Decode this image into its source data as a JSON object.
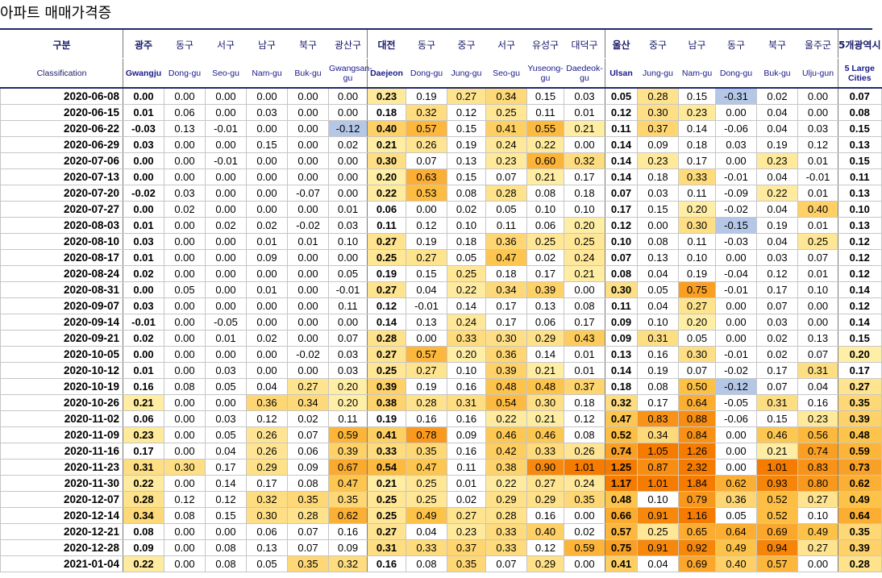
{
  "title": "아파트 매매가격증",
  "header": {
    "label_ko": "구분",
    "label_en": "Classification",
    "columns": [
      {
        "ko": "광주",
        "en": "Gwangju"
      },
      {
        "ko": "동구",
        "en": "Dong-gu"
      },
      {
        "ko": "서구",
        "en": "Seo-gu"
      },
      {
        "ko": "남구",
        "en": "Nam-gu"
      },
      {
        "ko": "북구",
        "en": "Buk-gu"
      },
      {
        "ko": "광산구",
        "en": "Gwangsan-gu"
      },
      {
        "ko": "대전",
        "en": "Daejeon"
      },
      {
        "ko": "동구",
        "en": "Dong-gu"
      },
      {
        "ko": "중구",
        "en": "Jung-gu"
      },
      {
        "ko": "서구",
        "en": "Seo-gu"
      },
      {
        "ko": "유성구",
        "en": "Yuseong-gu"
      },
      {
        "ko": "대덕구",
        "en": "Daedeok-gu"
      },
      {
        "ko": "울산",
        "en": "Ulsan"
      },
      {
        "ko": "중구",
        "en": "Jung-gu"
      },
      {
        "ko": "남구",
        "en": "Nam-gu"
      },
      {
        "ko": "동구",
        "en": "Dong-gu"
      },
      {
        "ko": "북구",
        "en": "Buk-gu"
      },
      {
        "ko": "울주군",
        "en": "Ulju-gun"
      },
      {
        "ko": "5개광역시",
        "en": "5 Large Cities"
      }
    ]
  },
  "rows": [
    {
      "date": "2020-06-08",
      "values": [
        "0.00",
        "0.00",
        "0.00",
        "0.00",
        "0.00",
        "0.00",
        "0.23",
        "0.19",
        "0.27",
        "0.34",
        "0.15",
        "0.03",
        "0.05",
        "0.28",
        "0.15",
        "-0.31",
        "0.02",
        "0.00",
        "0.07"
      ]
    },
    {
      "date": "2020-06-15",
      "values": [
        "0.01",
        "0.06",
        "0.00",
        "0.03",
        "0.00",
        "0.00",
        "0.18",
        "0.32",
        "0.12",
        "0.25",
        "0.11",
        "0.01",
        "0.12",
        "0.30",
        "0.23",
        "0.00",
        "0.04",
        "0.00",
        "0.08"
      ]
    },
    {
      "date": "2020-06-22",
      "values": [
        "-0.03",
        "0.13",
        "-0.01",
        "0.00",
        "0.00",
        "-0.12",
        "0.40",
        "0.57",
        "0.15",
        "0.41",
        "0.55",
        "0.21",
        "0.11",
        "0.37",
        "0.14",
        "-0.06",
        "0.04",
        "0.03",
        "0.15"
      ]
    },
    {
      "date": "2020-06-29",
      "values": [
        "0.03",
        "0.00",
        "0.00",
        "0.15",
        "0.00",
        "0.02",
        "0.21",
        "0.26",
        "0.19",
        "0.24",
        "0.22",
        "0.00",
        "0.14",
        "0.09",
        "0.18",
        "0.03",
        "0.19",
        "0.12",
        "0.13"
      ]
    },
    {
      "date": "2020-07-06",
      "values": [
        "0.00",
        "0.00",
        "-0.01",
        "0.00",
        "0.00",
        "0.00",
        "0.30",
        "0.07",
        "0.13",
        "0.23",
        "0.60",
        "0.32",
        "0.14",
        "0.23",
        "0.17",
        "0.00",
        "0.23",
        "0.01",
        "0.15"
      ]
    },
    {
      "date": "2020-07-13",
      "values": [
        "0.00",
        "0.00",
        "0.00",
        "0.00",
        "0.00",
        "0.00",
        "0.20",
        "0.63",
        "0.15",
        "0.07",
        "0.21",
        "0.17",
        "0.14",
        "0.18",
        "0.33",
        "-0.01",
        "0.04",
        "-0.01",
        "0.11"
      ]
    },
    {
      "date": "2020-07-20",
      "values": [
        "-0.02",
        "0.03",
        "0.00",
        "0.00",
        "-0.07",
        "0.00",
        "0.22",
        "0.53",
        "0.08",
        "0.28",
        "0.08",
        "0.18",
        "0.07",
        "0.03",
        "0.11",
        "-0.09",
        "0.22",
        "0.01",
        "0.13"
      ]
    },
    {
      "date": "2020-07-27",
      "values": [
        "0.00",
        "0.02",
        "0.00",
        "0.00",
        "0.00",
        "0.01",
        "0.06",
        "0.00",
        "0.02",
        "0.05",
        "0.10",
        "0.10",
        "0.17",
        "0.15",
        "0.20",
        "-0.02",
        "0.04",
        "0.40",
        "0.10"
      ]
    },
    {
      "date": "2020-08-03",
      "values": [
        "0.01",
        "0.00",
        "0.02",
        "0.02",
        "-0.02",
        "0.03",
        "0.11",
        "0.12",
        "0.10",
        "0.11",
        "0.06",
        "0.20",
        "0.12",
        "0.00",
        "0.30",
        "-0.15",
        "0.19",
        "0.01",
        "0.13"
      ]
    },
    {
      "date": "2020-08-10",
      "values": [
        "0.03",
        "0.00",
        "0.00",
        "0.01",
        "0.01",
        "0.10",
        "0.27",
        "0.19",
        "0.18",
        "0.36",
        "0.25",
        "0.25",
        "0.10",
        "0.08",
        "0.11",
        "-0.03",
        "0.04",
        "0.25",
        "0.12"
      ]
    },
    {
      "date": "2020-08-17",
      "values": [
        "0.01",
        "0.00",
        "0.00",
        "0.09",
        "0.00",
        "0.00",
        "0.25",
        "0.27",
        "0.05",
        "0.47",
        "0.02",
        "0.24",
        "0.07",
        "0.13",
        "0.10",
        "0.00",
        "0.03",
        "0.07",
        "0.12"
      ]
    },
    {
      "date": "2020-08-24",
      "values": [
        "0.02",
        "0.00",
        "0.00",
        "0.00",
        "0.00",
        "0.05",
        "0.19",
        "0.15",
        "0.25",
        "0.18",
        "0.17",
        "0.21",
        "0.08",
        "0.04",
        "0.19",
        "-0.04",
        "0.12",
        "0.01",
        "0.12"
      ]
    },
    {
      "date": "2020-08-31",
      "values": [
        "0.00",
        "0.05",
        "0.00",
        "0.01",
        "0.00",
        "-0.01",
        "0.27",
        "0.04",
        "0.22",
        "0.34",
        "0.39",
        "0.00",
        "0.30",
        "0.05",
        "0.75",
        "-0.01",
        "0.17",
        "0.10",
        "0.14"
      ]
    },
    {
      "date": "2020-09-07",
      "values": [
        "0.03",
        "0.00",
        "0.00",
        "0.00",
        "0.00",
        "0.11",
        "0.12",
        "-0.01",
        "0.14",
        "0.17",
        "0.13",
        "0.08",
        "0.11",
        "0.04",
        "0.27",
        "0.00",
        "0.07",
        "0.00",
        "0.12"
      ]
    },
    {
      "date": "2020-09-14",
      "values": [
        "-0.01",
        "0.00",
        "-0.05",
        "0.00",
        "0.00",
        "0.00",
        "0.14",
        "0.13",
        "0.24",
        "0.17",
        "0.06",
        "0.17",
        "0.09",
        "0.10",
        "0.20",
        "0.00",
        "0.03",
        "0.00",
        "0.14"
      ]
    },
    {
      "date": "2020-09-21",
      "values": [
        "0.02",
        "0.00",
        "0.01",
        "0.02",
        "0.00",
        "0.07",
        "0.28",
        "0.00",
        "0.33",
        "0.30",
        "0.29",
        "0.43",
        "0.09",
        "0.31",
        "0.05",
        "0.00",
        "0.02",
        "0.13",
        "0.15"
      ]
    },
    {
      "date": "2020-10-05",
      "values": [
        "0.00",
        "0.00",
        "0.00",
        "0.00",
        "-0.02",
        "0.03",
        "0.27",
        "0.57",
        "0.20",
        "0.36",
        "0.14",
        "0.01",
        "0.13",
        "0.16",
        "0.30",
        "-0.01",
        "0.02",
        "0.07",
        "0.20"
      ]
    },
    {
      "date": "2020-10-12",
      "values": [
        "0.01",
        "0.00",
        "0.03",
        "0.00",
        "0.00",
        "0.03",
        "0.25",
        "0.27",
        "0.10",
        "0.39",
        "0.21",
        "0.01",
        "0.14",
        "0.19",
        "0.07",
        "-0.02",
        "0.17",
        "0.31",
        "0.17"
      ]
    },
    {
      "date": "2020-10-19",
      "values": [
        "0.16",
        "0.08",
        "0.05",
        "0.04",
        "0.27",
        "0.20",
        "0.39",
        "0.19",
        "0.16",
        "0.48",
        "0.48",
        "0.37",
        "0.18",
        "0.08",
        "0.50",
        "-0.12",
        "0.07",
        "0.04",
        "0.27"
      ]
    },
    {
      "date": "2020-10-26",
      "values": [
        "0.21",
        "0.00",
        "0.00",
        "0.36",
        "0.34",
        "0.20",
        "0.38",
        "0.28",
        "0.31",
        "0.54",
        "0.30",
        "0.18",
        "0.32",
        "0.17",
        "0.64",
        "-0.05",
        "0.31",
        "0.16",
        "0.35"
      ]
    },
    {
      "date": "2020-11-02",
      "values": [
        "0.06",
        "0.00",
        "0.03",
        "0.12",
        "0.02",
        "0.11",
        "0.19",
        "0.16",
        "0.16",
        "0.22",
        "0.21",
        "0.12",
        "0.47",
        "0.83",
        "0.88",
        "-0.06",
        "0.15",
        "0.23",
        "0.39"
      ]
    },
    {
      "date": "2020-11-09",
      "values": [
        "0.23",
        "0.00",
        "0.05",
        "0.26",
        "0.07",
        "0.59",
        "0.41",
        "0.78",
        "0.09",
        "0.46",
        "0.46",
        "0.08",
        "0.52",
        "0.34",
        "0.84",
        "0.00",
        "0.46",
        "0.56",
        "0.48"
      ]
    },
    {
      "date": "2020-11-16",
      "values": [
        "0.17",
        "0.00",
        "0.04",
        "0.26",
        "0.06",
        "0.39",
        "0.33",
        "0.35",
        "0.16",
        "0.42",
        "0.33",
        "0.26",
        "0.74",
        "1.05",
        "1.26",
        "0.00",
        "0.21",
        "0.74",
        "0.59"
      ]
    },
    {
      "date": "2020-11-23",
      "values": [
        "0.31",
        "0.30",
        "0.17",
        "0.29",
        "0.09",
        "0.67",
        "0.54",
        "0.47",
        "0.11",
        "0.38",
        "0.90",
        "1.01",
        "1.25",
        "0.87",
        "2.32",
        "0.00",
        "1.01",
        "0.83",
        "0.73"
      ]
    },
    {
      "date": "2020-11-30",
      "values": [
        "0.22",
        "0.00",
        "0.14",
        "0.17",
        "0.08",
        "0.47",
        "0.21",
        "0.25",
        "0.01",
        "0.22",
        "0.27",
        "0.24",
        "1.17",
        "1.01",
        "1.84",
        "0.62",
        "0.93",
        "0.80",
        "0.62"
      ]
    },
    {
      "date": "2020-12-07",
      "values": [
        "0.28",
        "0.12",
        "0.12",
        "0.32",
        "0.35",
        "0.35",
        "0.25",
        "0.25",
        "0.02",
        "0.29",
        "0.29",
        "0.35",
        "0.48",
        "0.10",
        "0.79",
        "0.36",
        "0.52",
        "0.27",
        "0.49"
      ]
    },
    {
      "date": "2020-12-14",
      "values": [
        "0.34",
        "0.08",
        "0.15",
        "0.30",
        "0.28",
        "0.62",
        "0.25",
        "0.49",
        "0.27",
        "0.28",
        "0.16",
        "0.00",
        "0.66",
        "0.91",
        "1.16",
        "0.05",
        "0.52",
        "0.10",
        "0.64"
      ]
    },
    {
      "date": "2020-12-21",
      "values": [
        "0.08",
        "0.00",
        "0.00",
        "0.06",
        "0.07",
        "0.16",
        "0.27",
        "0.04",
        "0.23",
        "0.33",
        "0.40",
        "0.02",
        "0.57",
        "0.25",
        "0.65",
        "0.64",
        "0.69",
        "0.49",
        "0.35"
      ]
    },
    {
      "date": "2020-12-28",
      "values": [
        "0.09",
        "0.00",
        "0.08",
        "0.13",
        "0.07",
        "0.09",
        "0.31",
        "0.33",
        "0.37",
        "0.33",
        "0.12",
        "0.59",
        "0.75",
        "0.91",
        "0.92",
        "0.49",
        "0.94",
        "0.27",
        "0.39"
      ]
    },
    {
      "date": "2021-01-04",
      "values": [
        "0.22",
        "0.00",
        "0.08",
        "0.05",
        "0.35",
        "0.32",
        "0.16",
        "0.08",
        "0.35",
        "0.07",
        "0.29",
        "0.00",
        "0.41",
        "0.04",
        "0.69",
        "0.40",
        "0.57",
        "0.00",
        "0.28"
      ]
    }
  ],
  "colors": {
    "header_text": "#1a1a6a",
    "rule": "#1f2a6b",
    "scale_low": "#ffeea6",
    "scale_mid": "#fdc146",
    "scale_high": "#f57c00",
    "negative": "#b4c7e7"
  }
}
